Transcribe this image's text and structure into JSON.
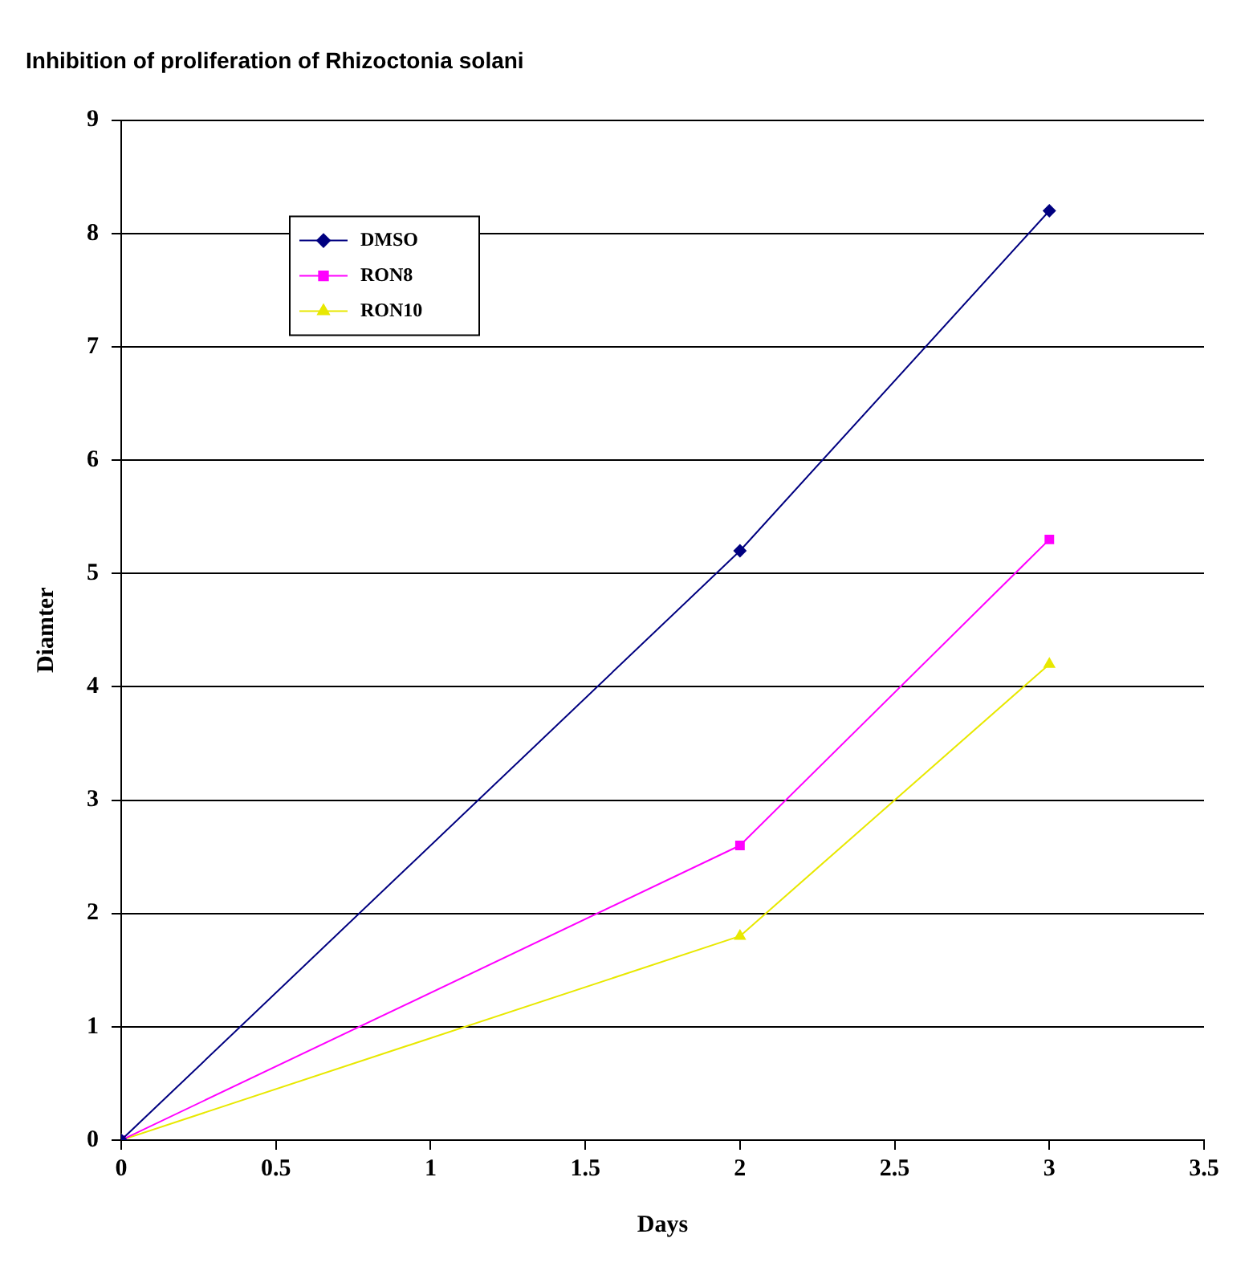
{
  "chart_data": {
    "type": "line",
    "title": "Inhibition of proliferation of Rhizoctonia solani",
    "xlabel": "Days",
    "ylabel": "Diamter",
    "x": [
      0,
      2,
      3
    ],
    "series": [
      {
        "name": "DMSO",
        "color": "#000080",
        "values": [
          0,
          5.2,
          8.2
        ],
        "marker": "diamond"
      },
      {
        "name": "RON8",
        "color": "#ff00ff",
        "values": [
          0,
          2.6,
          5.3
        ],
        "marker": "square"
      },
      {
        "name": "RON10",
        "color": "#e8e800",
        "values": [
          0,
          1.8,
          4.2
        ],
        "marker": "triangle"
      }
    ],
    "xlim": [
      0,
      3.5
    ],
    "xticks": [
      0,
      0.5,
      1,
      1.5,
      2,
      2.5,
      3,
      3.5
    ],
    "ylim": [
      0,
      9
    ],
    "yticks": [
      0,
      1,
      2,
      3,
      4,
      5,
      6,
      7,
      8,
      9
    ],
    "grid": "y",
    "legend": "top left",
    "line_style": "solid"
  }
}
